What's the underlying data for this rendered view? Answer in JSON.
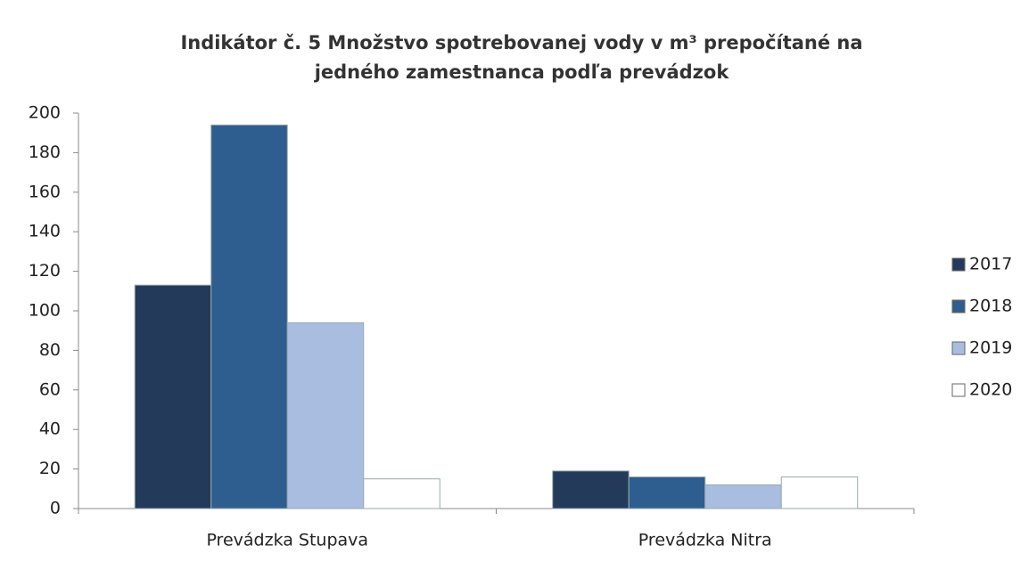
{
  "chart_data": {
    "type": "bar",
    "title": "Indikátor č. 5 Množstvo spotrebovanej vody v m³ prepočítané na jedného zamestnanca podľa prevádzok",
    "categories": [
      "Prevádzka Stupava",
      "Prevádzka Nitra"
    ],
    "series": [
      {
        "name": "2017",
        "color": "#243a5a",
        "values": [
          113,
          19
        ]
      },
      {
        "name": "2018",
        "color": "#2e5d8f",
        "values": [
          194,
          16
        ]
      },
      {
        "name": "2019",
        "color": "#a8bde0",
        "values": [
          94,
          12
        ]
      },
      {
        "name": "2020",
        "color": "#ffffff",
        "values": [
          15,
          16
        ]
      }
    ],
    "ylim": [
      0,
      200
    ],
    "yticks": [
      0,
      20,
      40,
      60,
      80,
      100,
      120,
      140,
      160,
      180,
      200
    ],
    "grid": false,
    "legend": "right"
  }
}
